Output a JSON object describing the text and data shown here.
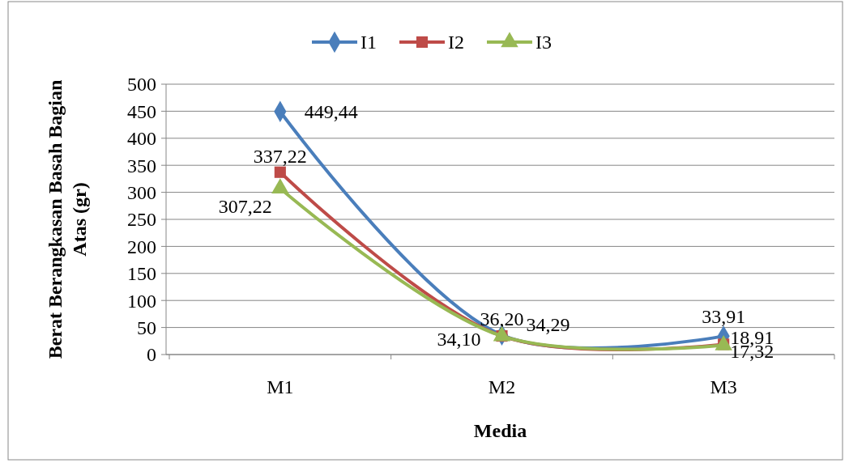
{
  "chart_data": {
    "type": "line",
    "xlabel": "Media",
    "ylabel": "Berat Berangkasan Basah Bagian Atas (gr)",
    "categories": [
      "M1",
      "M2",
      "M3"
    ],
    "series": [
      {
        "name": "I1",
        "color": "#4a7ebb",
        "marker": "diamond",
        "values": [
          449.44,
          36.2,
          33.91
        ],
        "value_labels": [
          "449,44",
          "36,20",
          "33,91"
        ]
      },
      {
        "name": "I2",
        "color": "#be4b48",
        "marker": "square",
        "values": [
          337.22,
          34.29,
          18.91
        ],
        "value_labels": [
          "337,22",
          "34,29",
          "18,91"
        ]
      },
      {
        "name": "I3",
        "color": "#98b954",
        "marker": "triangle",
        "values": [
          307.22,
          34.1,
          17.32
        ],
        "value_labels": [
          "307,22",
          "34,10",
          "17,32"
        ]
      }
    ],
    "ylim": [
      0,
      500
    ],
    "yticks": [
      0,
      50,
      100,
      150,
      200,
      250,
      300,
      350,
      400,
      450,
      500
    ],
    "grid": "y",
    "legend": "top"
  }
}
